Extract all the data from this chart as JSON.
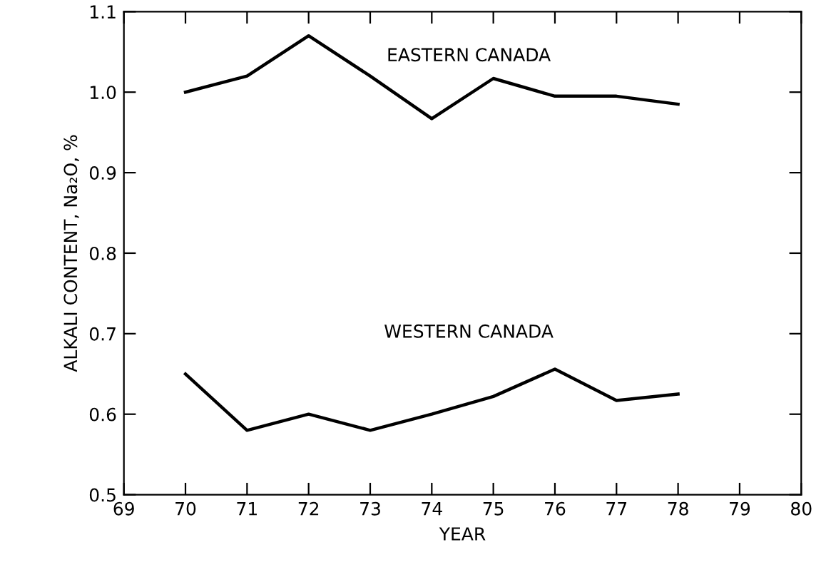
{
  "chart_data": {
    "type": "line",
    "xlabel": "YEAR",
    "ylabel": "ALKALI CONTENT, Na₂O, %",
    "x": [
      70,
      71,
      72,
      73,
      74,
      75,
      76,
      77,
      78
    ],
    "series": [
      {
        "name": "EASTERN CANADA",
        "color": "#000000",
        "values": [
          1.0,
          1.02,
          1.07,
          1.02,
          0.967,
          1.017,
          0.995,
          0.995,
          0.985
        ]
      },
      {
        "name": "WESTERN CANADA",
        "color": "#000000",
        "values": [
          0.65,
          0.58,
          0.6,
          0.58,
          0.6,
          0.622,
          0.656,
          0.617,
          0.625
        ]
      }
    ],
    "xlim": [
      69,
      80
    ],
    "xticks": [
      69,
      70,
      71,
      72,
      73,
      74,
      75,
      76,
      77,
      78,
      79,
      80
    ],
    "ylim": [
      0.5,
      1.1
    ],
    "yticks": [
      0.5,
      0.6,
      0.7,
      0.8,
      0.9,
      {
        "value": 1,
        "label": "1.0"
      },
      1.1
    ],
    "grid": false,
    "marker": "none",
    "line_style": "solid"
  }
}
